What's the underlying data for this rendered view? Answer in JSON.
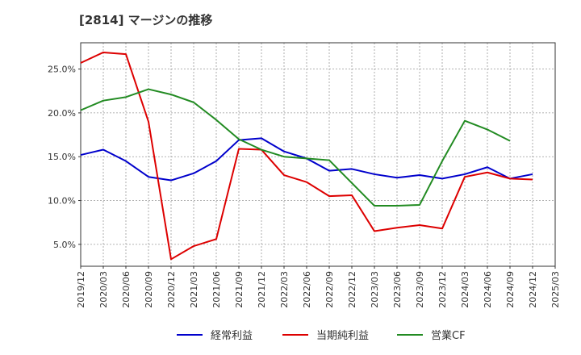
{
  "chart_data": {
    "type": "line",
    "title": "[2814]  マージンの推移",
    "x": [
      "2019/12",
      "2020/03",
      "2020/06",
      "2020/09",
      "2020/12",
      "2021/03",
      "2021/06",
      "2021/09",
      "2021/12",
      "2022/03",
      "2022/06",
      "2022/09",
      "2022/12",
      "2023/03",
      "2023/06",
      "2023/09",
      "2023/12",
      "2024/03",
      "2024/06",
      "2024/09",
      "2024/12",
      "2025/03"
    ],
    "ytick_labels": [
      "5.0%",
      "10.0%",
      "15.0%",
      "20.0%",
      "25.0%"
    ],
    "yticks": [
      5,
      10,
      15,
      20,
      25
    ],
    "ylim": [
      2.5,
      28
    ],
    "grid": true,
    "legend_position": "bottom",
    "series": [
      {
        "name": "経常利益",
        "color": "#0000cc",
        "values": [
          15.2,
          15.8,
          14.5,
          12.7,
          12.3,
          13.1,
          14.5,
          16.9,
          17.1,
          15.6,
          14.8,
          13.4,
          13.6,
          13.0,
          12.6,
          12.9,
          12.5,
          13.0,
          13.8,
          12.5,
          13.0,
          null
        ]
      },
      {
        "name": "当期純利益",
        "color": "#dd0000",
        "values": [
          25.7,
          26.9,
          26.7,
          19.0,
          3.3,
          4.8,
          5.6,
          15.9,
          15.8,
          12.9,
          12.1,
          10.5,
          10.6,
          6.5,
          6.9,
          7.2,
          6.8,
          12.7,
          13.2,
          12.5,
          12.4,
          null
        ]
      },
      {
        "name": "営業CF",
        "color": "#228b22",
        "values": [
          20.3,
          21.4,
          21.8,
          22.7,
          22.1,
          21.2,
          19.2,
          17.0,
          15.8,
          15.0,
          14.8,
          14.6,
          12.0,
          9.4,
          9.4,
          9.5,
          14.5,
          19.1,
          18.1,
          16.8,
          null,
          null
        ]
      }
    ]
  }
}
